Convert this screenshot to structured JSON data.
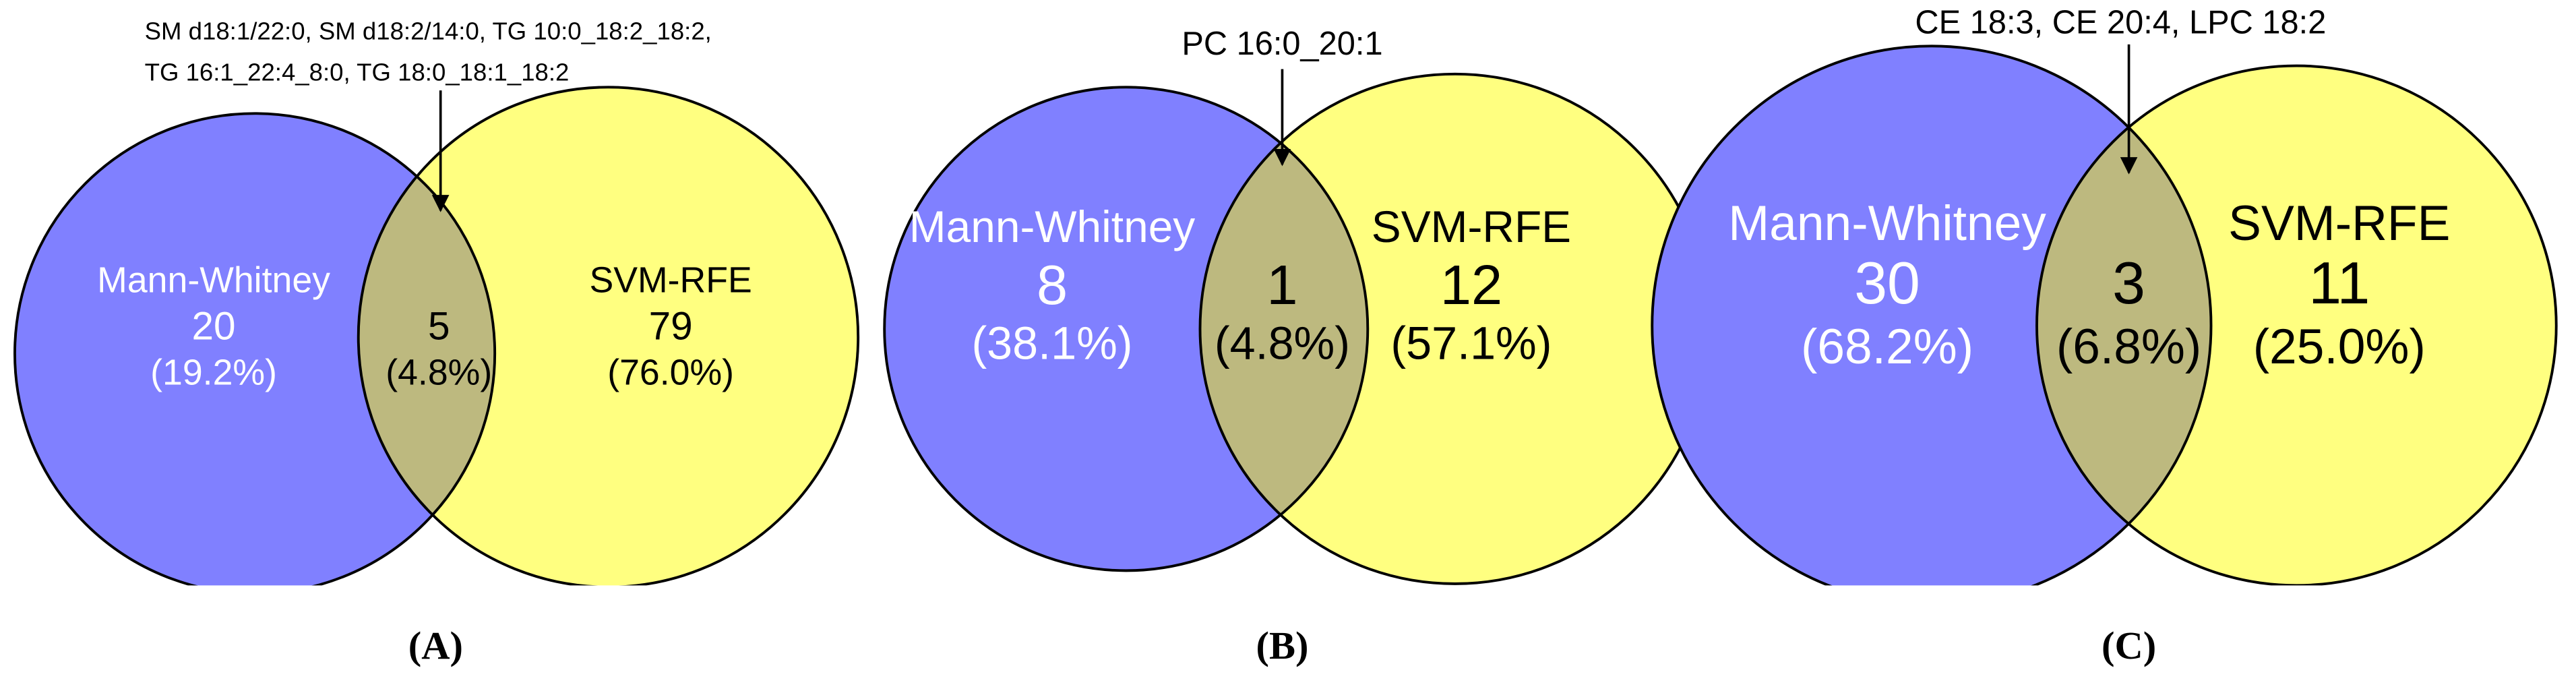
{
  "chart_data": [
    {
      "type": "venn",
      "panel_label": "(A)",
      "annotation": [
        "SM d18:1/22:0, SM d18:2/14:0, TG 10:0_18:2_18:2,",
        "TG 16:1_22:4_8:0, TG 18:0_18:1_18:2"
      ],
      "sets": [
        {
          "name": "Mann-Whitney",
          "color": "#8080ff"
        },
        {
          "name": "SVM-RFE",
          "color": "#ffff80"
        }
      ],
      "intersection_color": "#bdb97f",
      "counts": [
        20,
        5,
        79
      ],
      "percent_labels": [
        "(19.2%)",
        "(4.8%)",
        "(76.0%)"
      ]
    },
    {
      "type": "venn",
      "panel_label": "(B)",
      "annotation": [
        "PC 16:0_20:1"
      ],
      "sets": [
        {
          "name": "Mann-Whitney",
          "color": "#8080ff"
        },
        {
          "name": "SVM-RFE",
          "color": "#ffff80"
        }
      ],
      "intersection_color": "#bdb97f",
      "counts": [
        8,
        1,
        12
      ],
      "percent_labels": [
        "(38.1%)",
        "(4.8%)",
        "(57.1%)"
      ]
    },
    {
      "type": "venn",
      "panel_label": "(C)",
      "annotation": [
        "CE 18:3, CE 20:4, LPC 18:2"
      ],
      "sets": [
        {
          "name": "Mann-Whitney",
          "color": "#8080ff"
        },
        {
          "name": "SVM-RFE",
          "color": "#ffff80"
        }
      ],
      "intersection_color": "#bdb97f",
      "counts": [
        30,
        3,
        11
      ],
      "percent_labels": [
        "(68.2%)",
        "(6.8%)",
        "(25.0%)"
      ]
    }
  ]
}
